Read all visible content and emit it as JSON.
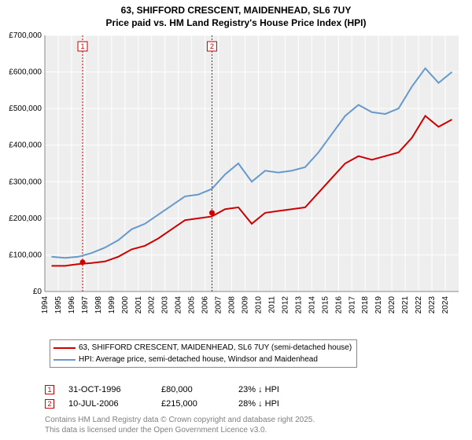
{
  "title_line1": "63, SHIFFORD CRESCENT, MAIDENHEAD, SL6 7UY",
  "title_line2": "Price paid vs. HM Land Registry's House Price Index (HPI)",
  "chart": {
    "type": "line",
    "background_color": "#ffffff",
    "plot_background_color": "#eeeeee",
    "grid_color": "#ffffff",
    "axis_label_color": "#000000",
    "tick_fontsize": 10,
    "title_fontsize": 12,
    "x": {
      "years": [
        1994,
        1995,
        1996,
        1997,
        1998,
        1999,
        2000,
        2001,
        2002,
        2003,
        2004,
        2005,
        2006,
        2007,
        2008,
        2009,
        2010,
        2011,
        2012,
        2013,
        2014,
        2015,
        2016,
        2017,
        2018,
        2019,
        2020,
        2021,
        2022,
        2023,
        2024
      ],
      "rotation": -90
    },
    "y": {
      "min": 0,
      "max": 700000,
      "tick_step": 100000,
      "tick_labels": [
        "£0",
        "£100,000",
        "£200,000",
        "£300,000",
        "£400,000",
        "£500,000",
        "£600,000",
        "£700,000"
      ]
    },
    "series": [
      {
        "name": "price_paid",
        "label": "63, SHIFFORD CRESCENT, MAIDENHEAD, SL6 7UY (semi-detached house)",
        "color": "#cc0000",
        "line_width": 2,
        "values": [
          70000,
          70000,
          75000,
          78000,
          82000,
          95000,
          115000,
          125000,
          145000,
          170000,
          195000,
          200000,
          205000,
          225000,
          230000,
          185000,
          215000,
          220000,
          225000,
          230000,
          270000,
          310000,
          350000,
          370000,
          360000,
          370000,
          380000,
          420000,
          480000,
          450000,
          470000
        ]
      },
      {
        "name": "hpi",
        "label": "HPI: Average price, semi-detached house, Windsor and Maidenhead",
        "color": "#6699cc",
        "line_width": 2,
        "values": [
          95000,
          92000,
          95000,
          105000,
          120000,
          140000,
          170000,
          185000,
          210000,
          235000,
          260000,
          265000,
          280000,
          320000,
          350000,
          300000,
          330000,
          325000,
          330000,
          340000,
          380000,
          430000,
          480000,
          510000,
          490000,
          485000,
          500000,
          560000,
          610000,
          570000,
          600000
        ]
      }
    ],
    "sale_markers": [
      {
        "index": 1,
        "year": 1996,
        "fraction": 0.83,
        "value": 80000,
        "color": "#cc0000"
      },
      {
        "index": 2,
        "year": 2006,
        "fraction": 0.52,
        "value": 215000,
        "color": "#cc0000"
      }
    ],
    "marker_box_bg": "#ffffff"
  },
  "legend": {
    "items": [
      {
        "color": "#cc0000",
        "text": "63, SHIFFORD CRESCENT, MAIDENHEAD, SL6 7UY (semi-detached house)"
      },
      {
        "color": "#6699cc",
        "text": "HPI: Average price, semi-detached house, Windsor and Maidenhead"
      }
    ]
  },
  "sales": [
    {
      "index": "1",
      "date": "31-OCT-1996",
      "price": "£80,000",
      "diff": "23% ↓ HPI",
      "color": "#cc0000"
    },
    {
      "index": "2",
      "date": "10-JUL-2006",
      "price": "£215,000",
      "diff": "28% ↓ HPI",
      "color": "#cc0000"
    }
  ],
  "attribution_line1": "Contains HM Land Registry data © Crown copyright and database right 2025.",
  "attribution_line2": "This data is licensed under the Open Government Licence v3.0."
}
